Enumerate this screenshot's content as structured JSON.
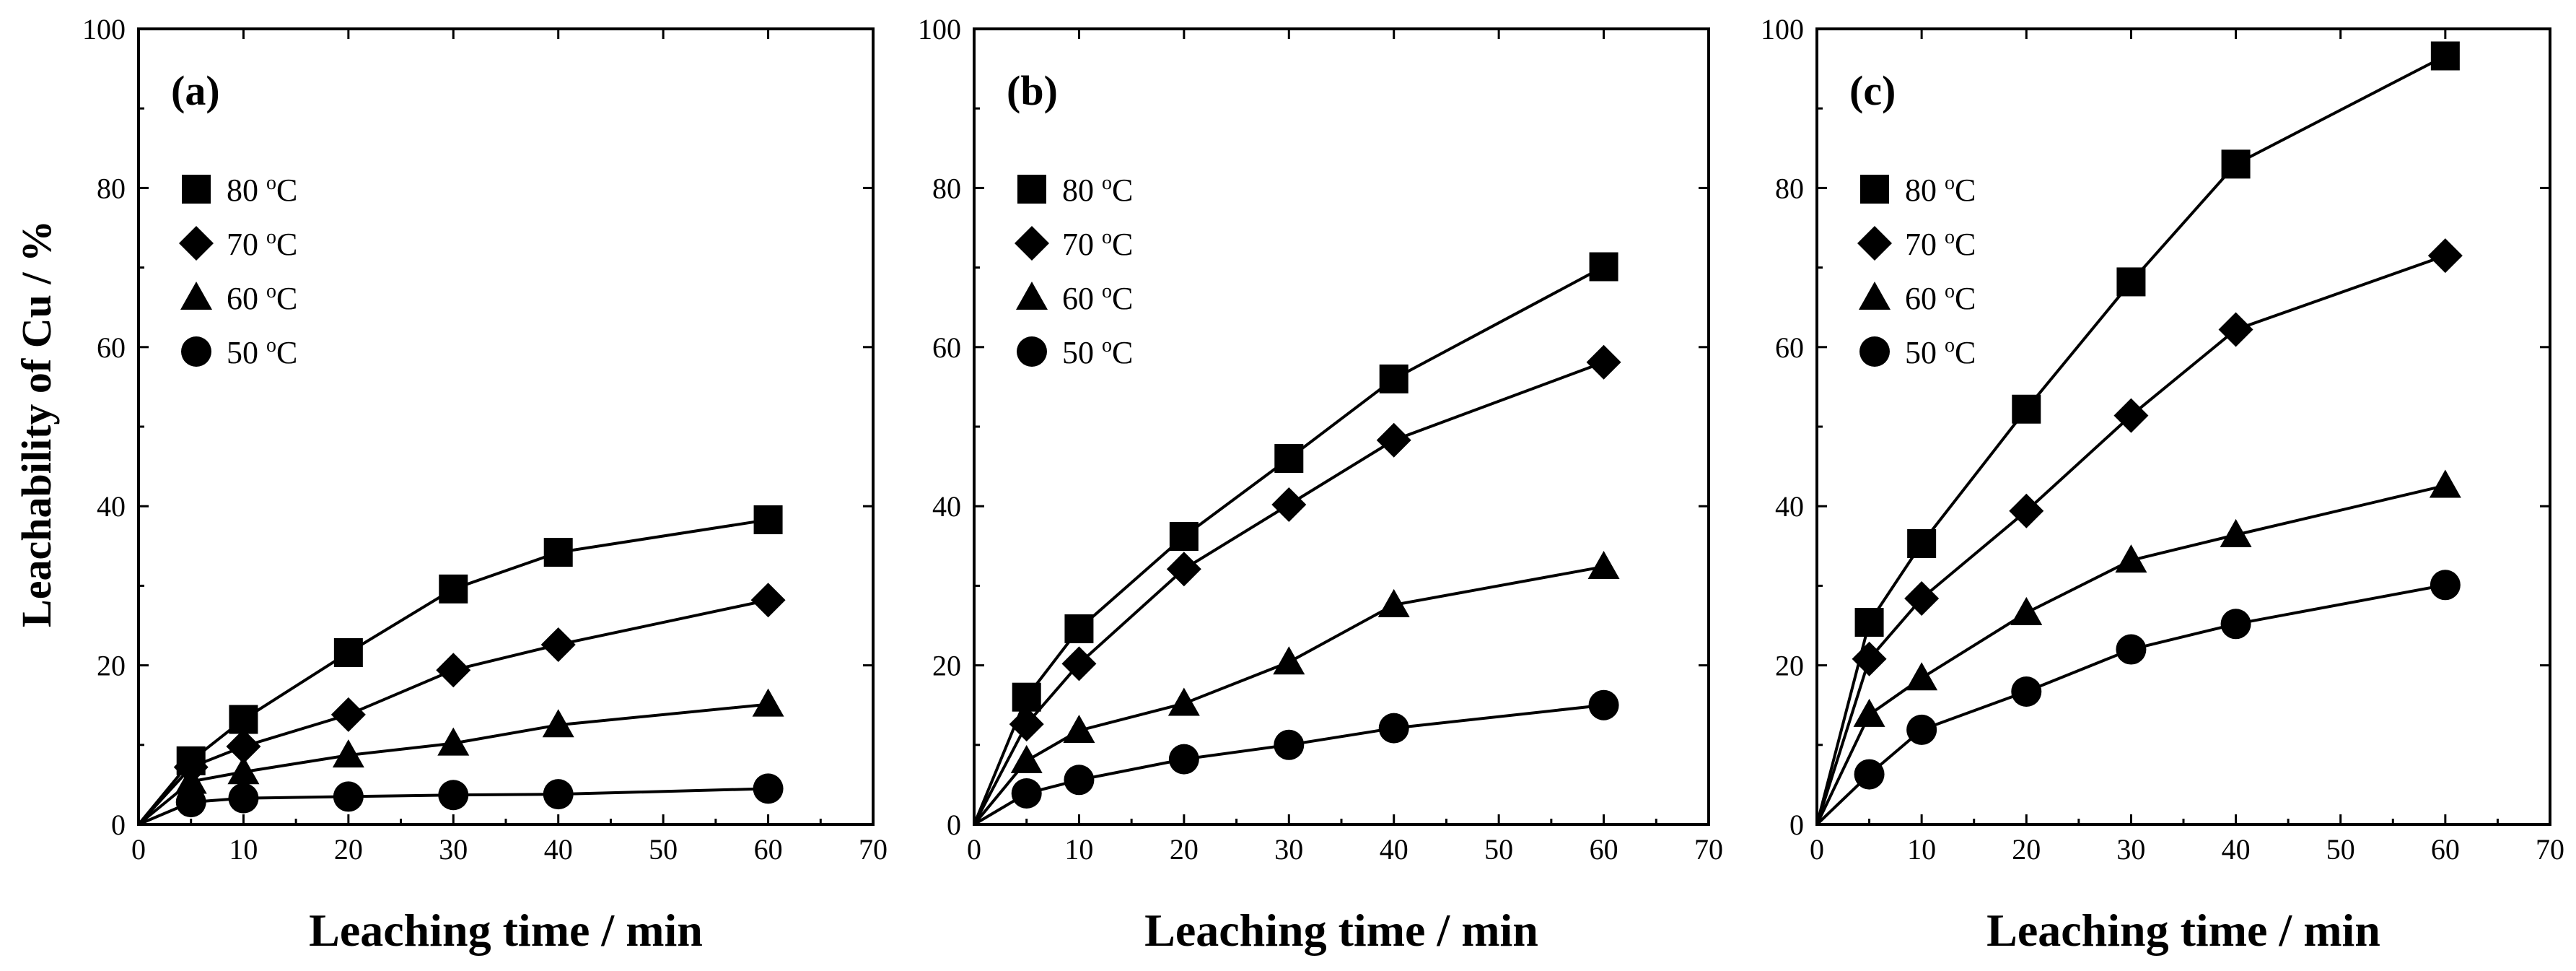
{
  "figure": {
    "ylabel": "Leachability of Cu / %",
    "xlabel": "Leaching time / min"
  },
  "legend_labels": [
    "80 oC",
    "70 oC",
    "60 oC",
    "50 oC"
  ],
  "chart_data": [
    {
      "type": "line",
      "panel": "(a)",
      "xlabel": "Leaching time / min",
      "ylabel": "Leachability of Cu / %",
      "xlim": [
        0,
        70
      ],
      "ylim": [
        0,
        100
      ],
      "xticks": [
        0,
        10,
        20,
        30,
        40,
        50,
        60,
        70
      ],
      "yticks": [
        0,
        20,
        40,
        60,
        80,
        100
      ],
      "legend_position": "upper-left",
      "series": [
        {
          "name": "80 oC",
          "marker": "square",
          "x": [
            0,
            5,
            10,
            20,
            30,
            40,
            60
          ],
          "y": [
            0,
            8.0,
            13.2,
            21.6,
            29.6,
            34.2,
            38.3
          ]
        },
        {
          "name": "70 oC",
          "marker": "diamond",
          "x": [
            0,
            5,
            10,
            20,
            30,
            40,
            60
          ],
          "y": [
            0,
            7.2,
            9.8,
            13.8,
            19.4,
            22.6,
            28.2
          ]
        },
        {
          "name": "60 oC",
          "marker": "triangle",
          "x": [
            0,
            5,
            10,
            20,
            30,
            40,
            60
          ],
          "y": [
            0,
            5.4,
            6.6,
            8.7,
            10.2,
            12.5,
            15.1
          ]
        },
        {
          "name": "50 oC",
          "marker": "circle",
          "x": [
            0,
            5,
            10,
            20,
            30,
            40,
            60
          ],
          "y": [
            0,
            2.8,
            3.3,
            3.5,
            3.7,
            3.8,
            4.5
          ]
        }
      ]
    },
    {
      "type": "line",
      "panel": "(b)",
      "xlabel": "Leaching time / min",
      "ylabel": "",
      "xlim": [
        0,
        70
      ],
      "ylim": [
        0,
        100
      ],
      "xticks": [
        0,
        10,
        20,
        30,
        40,
        50,
        60,
        70
      ],
      "yticks": [
        0,
        20,
        40,
        60,
        80,
        100
      ],
      "legend_position": "upper-left",
      "series": [
        {
          "name": "80 oC",
          "marker": "square",
          "x": [
            0,
            5,
            10,
            20,
            30,
            40,
            60
          ],
          "y": [
            0,
            16.0,
            24.6,
            36.2,
            46.0,
            56.0,
            70.1
          ]
        },
        {
          "name": "70 oC",
          "marker": "diamond",
          "x": [
            0,
            5,
            10,
            20,
            30,
            40,
            60
          ],
          "y": [
            0,
            12.6,
            20.2,
            32.1,
            40.2,
            48.3,
            58.1
          ]
        },
        {
          "name": "60 oC",
          "marker": "triangle",
          "x": [
            0,
            5,
            10,
            20,
            30,
            40,
            60
          ],
          "y": [
            0,
            8.0,
            11.8,
            15.2,
            20.4,
            27.6,
            32.4
          ]
        },
        {
          "name": "50 oC",
          "marker": "circle",
          "x": [
            0,
            5,
            10,
            20,
            30,
            40,
            60
          ],
          "y": [
            0,
            3.9,
            5.6,
            8.2,
            10.0,
            12.1,
            15.0
          ]
        }
      ]
    },
    {
      "type": "line",
      "panel": "(c)",
      "xlabel": "Leaching time / min",
      "ylabel": "",
      "xlim": [
        0,
        70
      ],
      "ylim": [
        0,
        100
      ],
      "xticks": [
        0,
        10,
        20,
        30,
        40,
        50,
        60,
        70
      ],
      "yticks": [
        0,
        20,
        40,
        60,
        80,
        100
      ],
      "legend_position": "upper-left",
      "series": [
        {
          "name": "80 oC",
          "marker": "square",
          "x": [
            0,
            5,
            10,
            20,
            30,
            40,
            60
          ],
          "y": [
            0,
            25.4,
            35.3,
            52.2,
            68.2,
            83.0,
            96.6
          ]
        },
        {
          "name": "70 oC",
          "marker": "diamond",
          "x": [
            0,
            5,
            10,
            20,
            30,
            40,
            60
          ],
          "y": [
            0,
            20.8,
            28.4,
            39.4,
            51.4,
            62.2,
            71.5
          ]
        },
        {
          "name": "60 oC",
          "marker": "triangle",
          "x": [
            0,
            5,
            10,
            20,
            30,
            40,
            60
          ],
          "y": [
            0,
            13.8,
            18.4,
            26.6,
            33.2,
            36.4,
            42.6
          ]
        },
        {
          "name": "50 oC",
          "marker": "circle",
          "x": [
            0,
            5,
            10,
            20,
            30,
            40,
            60
          ],
          "y": [
            0,
            6.3,
            11.9,
            16.7,
            22.0,
            25.2,
            30.1
          ]
        }
      ]
    }
  ]
}
